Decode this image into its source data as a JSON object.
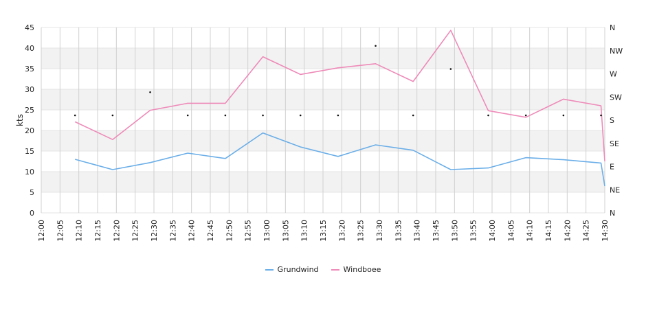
{
  "chart_data": {
    "type": "line",
    "title": "",
    "ylabel": "kts",
    "ylim": [
      0,
      45
    ],
    "yticks": [
      "0",
      "5",
      "10",
      "15",
      "20",
      "25",
      "30",
      "35",
      "40",
      "45"
    ],
    "xticks": [
      "12:00",
      "12:05",
      "12:10",
      "12:15",
      "12:20",
      "12:25",
      "12:30",
      "12:35",
      "12:40",
      "12:45",
      "12:50",
      "12:55",
      "13:00",
      "13:05",
      "13:10",
      "13:15",
      "13:20",
      "13:25",
      "13:30",
      "13:35",
      "13:40",
      "13:45",
      "13:50",
      "13:55",
      "14:00",
      "14:05",
      "14:10",
      "14:15",
      "14:20",
      "14:25",
      "14:30"
    ],
    "y2ticks": [
      "N",
      "NE",
      "E",
      "SE",
      "S",
      "SW",
      "W",
      "NW",
      "N"
    ],
    "x": [
      "12:09",
      "12:19",
      "12:29",
      "12:39",
      "12:49",
      "12:59",
      "13:09",
      "13:19",
      "13:29",
      "13:39",
      "13:49",
      "13:59",
      "14:09",
      "14:19",
      "14:29",
      "14:30"
    ],
    "series": [
      {
        "name": "Grundwind",
        "color": "#6aaee8",
        "values": [
          13.0,
          10.5,
          12.2,
          14.5,
          13.2,
          19.4,
          16.0,
          13.7,
          16.5,
          15.2,
          10.5,
          10.9,
          13.4,
          12.9,
          12.1,
          6.5
        ]
      },
      {
        "name": "Windboee",
        "color": "#ee8ab8",
        "values": [
          22.1,
          17.8,
          24.9,
          26.6,
          26.6,
          37.9,
          33.6,
          35.2,
          36.2,
          31.9,
          44.3,
          24.8,
          23.2,
          27.6,
          26.0,
          12.5
        ]
      }
    ],
    "direction_points": {
      "x": [
        "12:09",
        "12:19",
        "12:29",
        "12:39",
        "12:49",
        "12:59",
        "13:09",
        "13:19",
        "13:29",
        "13:39",
        "13:49",
        "13:59",
        "14:09",
        "14:19",
        "14:29"
      ],
      "y": [
        "S",
        "S",
        "SW",
        "S",
        "S",
        "S",
        "S",
        "S",
        "NW",
        "S",
        "W",
        "S",
        "S",
        "S",
        "S"
      ]
    },
    "colors": {
      "grid_band": "#f2f2f2",
      "grid_line": "#d0d0d0",
      "axis_text": "#222222"
    },
    "legend_position": "bottom-center",
    "grid": true
  }
}
